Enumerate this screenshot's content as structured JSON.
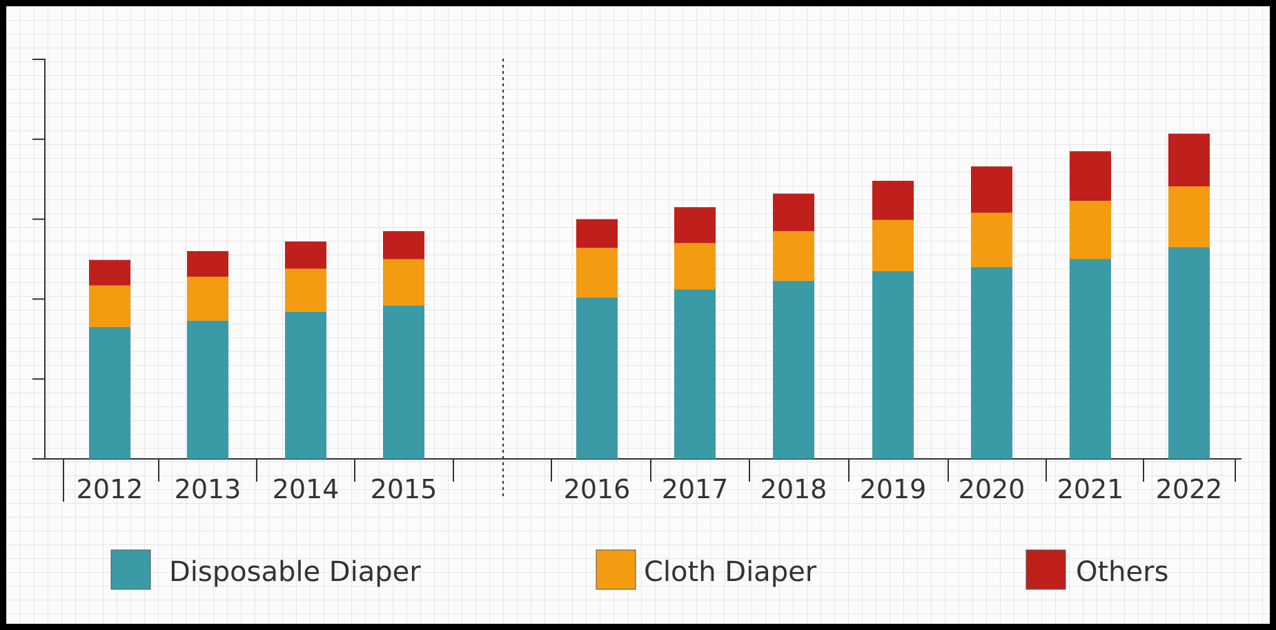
{
  "chart_data": {
    "type": "bar",
    "stacked": true,
    "categories": [
      "2012",
      "2013",
      "2014",
      "2015",
      "2016",
      "2017",
      "2018",
      "2019",
      "2020",
      "2021",
      "2022"
    ],
    "series": [
      {
        "name": "Disposable Diaper",
        "color": "#3a9aa6",
        "values": [
          1.65,
          1.73,
          1.84,
          1.92,
          2.02,
          2.12,
          2.23,
          2.35,
          2.4,
          2.5,
          2.65
        ]
      },
      {
        "name": "Cloth Diaper",
        "color": "#f39c12",
        "values": [
          0.52,
          0.55,
          0.54,
          0.58,
          0.62,
          0.58,
          0.62,
          0.64,
          0.68,
          0.73,
          0.76
        ]
      },
      {
        "name": "Others",
        "color": "#c0201c",
        "values": [
          0.32,
          0.32,
          0.34,
          0.35,
          0.36,
          0.45,
          0.47,
          0.49,
          0.58,
          0.62,
          0.66
        ]
      }
    ],
    "ylim": [
      0,
      5
    ],
    "y_ticks": [
      0,
      1,
      2,
      3,
      4,
      5
    ],
    "y_tick_labels_shown": false,
    "grid": true,
    "divider_after": "2015",
    "legend_position": "bottom",
    "title": "",
    "xlabel": "",
    "ylabel": ""
  }
}
